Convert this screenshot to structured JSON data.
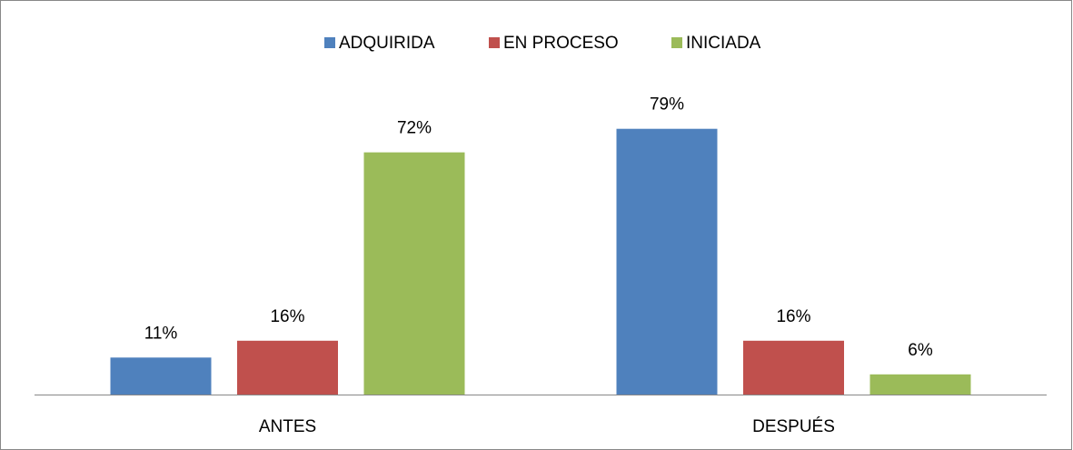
{
  "chart_data": {
    "type": "bar",
    "categories": [
      "ANTES",
      "DESPUÉS"
    ],
    "series": [
      {
        "name": "ADQUIRIDA",
        "color": "#4f81bd",
        "values": [
          11,
          79
        ],
        "value_labels": [
          "11%",
          "79%"
        ]
      },
      {
        "name": "EN PROCESO",
        "color": "#c0504d",
        "values": [
          16,
          16
        ],
        "value_labels": [
          "16%",
          "16%"
        ]
      },
      {
        "name": "INICIADA",
        "color": "#9bbb59",
        "values": [
          72,
          6
        ],
        "value_labels": [
          "72%",
          "6%"
        ]
      }
    ]
  }
}
